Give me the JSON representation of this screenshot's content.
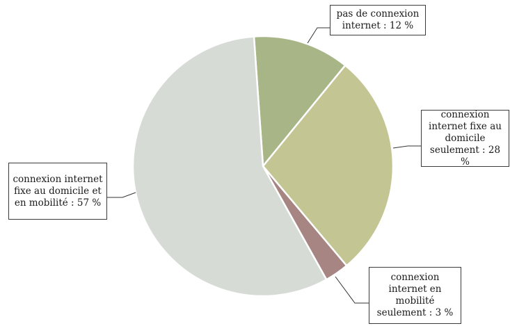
{
  "chart_data": {
    "type": "pie",
    "title": "",
    "slices": [
      {
        "label": "pas de connexion internet : 12 %",
        "value": 12,
        "color": "#a8b687"
      },
      {
        "label": "connexion internet fixe au domicile seulement : 28 %",
        "value": 28,
        "color": "#c3c593"
      },
      {
        "label": "connexion internet en mobilité seulement : 3 %",
        "value": 3,
        "color": "#a68583"
      },
      {
        "label": "connexion internet fixe au domicile et en mobilité : 57 %",
        "value": 57,
        "color": "#d6dbd5"
      }
    ],
    "start_angle_deg": -4,
    "direction": "clockwise",
    "legend": "none"
  }
}
